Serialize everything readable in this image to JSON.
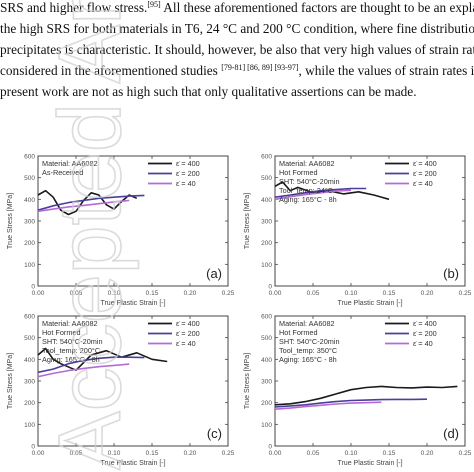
{
  "paragraph": {
    "lines": [
      {
        "parts": [
          {
            "t": "SRS and higher flow stress."
          },
          {
            "sup": "[95]"
          },
          {
            "t": " All these aforementioned factors are thought to be an explanation"
          }
        ]
      },
      {
        "parts": [
          {
            "t": "the high SRS for both materials in T6, 24 °C and 200 °C condition, where fine distribution"
          }
        ]
      },
      {
        "parts": [
          {
            "t": "precipitates is characteristic. It should, however, be also that very high values of strain rates w"
          }
        ]
      },
      {
        "parts": [
          {
            "t": "considered in the aforementioned studies "
          },
          {
            "sup": "[79-81] [86, 89] [93-97]"
          },
          {
            "t": ", while the values of strain rates in"
          }
        ]
      },
      {
        "parts": [
          {
            "t": "present work are not as high such that only qualitative assertions can be made."
          }
        ]
      }
    ]
  },
  "watermark": "Accepted Article",
  "axes": {
    "ylabel": "True Stress [MPa]",
    "xlabel": "True Plastic Strain [-]",
    "yticks": [
      "600",
      "500",
      "400",
      "300",
      "200",
      "100",
      "0"
    ],
    "xticks": [
      "0.00",
      "0.05",
      "0.10",
      "0.15",
      "0.20",
      "0.25"
    ],
    "xlim": [
      0,
      0.25
    ],
    "ylim": [
      0,
      600
    ]
  },
  "colors": {
    "s400": "#1a1a1a",
    "s200": "#4a3f9a",
    "s40": "#b56ad6",
    "frame": "#444444"
  },
  "legend": [
    "ε̇ = 400",
    "ε̇ = 200",
    "ε̇ = 40"
  ],
  "chart_data": [
    {
      "type": "line",
      "panel_label": "(a)",
      "annotation": [
        "Material: AA6082",
        "As-Received"
      ],
      "series": [
        {
          "name": "ε̇ = 400",
          "x": [
            0.0,
            0.01,
            0.02,
            0.03,
            0.04,
            0.05,
            0.06,
            0.07,
            0.08,
            0.09,
            0.1,
            0.11,
            0.12,
            0.13
          ],
          "y": [
            420,
            440,
            410,
            350,
            330,
            345,
            395,
            430,
            420,
            375,
            355,
            390,
            420,
            405
          ]
        },
        {
          "name": "ε̇ = 200",
          "x": [
            0.0,
            0.02,
            0.04,
            0.06,
            0.08,
            0.1,
            0.12,
            0.14
          ],
          "y": [
            350,
            370,
            385,
            395,
            405,
            410,
            415,
            418
          ]
        },
        {
          "name": "ε̇ = 40",
          "x": [
            0.0,
            0.02,
            0.04,
            0.06,
            0.08,
            0.1,
            0.12
          ],
          "y": [
            345,
            355,
            365,
            372,
            380,
            388,
            395
          ]
        }
      ]
    },
    {
      "type": "line",
      "panel_label": "(b)",
      "annotation": [
        "Material: AA6082",
        "Hot Formed",
        "SHT: 540°C-20min",
        "Tool_temp: 24°C",
        "Aging: 165°C - 8h"
      ],
      "series": [
        {
          "name": "ε̇ = 400",
          "x": [
            0.0,
            0.01,
            0.02,
            0.03,
            0.05,
            0.07,
            0.09,
            0.11,
            0.13,
            0.15
          ],
          "y": [
            460,
            480,
            440,
            455,
            430,
            440,
            425,
            435,
            420,
            400
          ]
        },
        {
          "name": "ε̇ = 200",
          "x": [
            0.0,
            0.02,
            0.04,
            0.06,
            0.08,
            0.1,
            0.12
          ],
          "y": [
            410,
            420,
            430,
            440,
            445,
            450,
            450
          ]
        },
        {
          "name": "ε̇ = 40",
          "x": [
            0.0,
            0.02,
            0.04,
            0.06,
            0.08,
            0.1
          ],
          "y": [
            400,
            412,
            422,
            430,
            438,
            442
          ]
        }
      ]
    },
    {
      "type": "line",
      "panel_label": "(c)",
      "annotation": [
        "Material: AA6082",
        "Hot Formed",
        "SHT: 540°C-20min",
        "Tool_temp: 200°C",
        "Aging: 165°C - 8h"
      ],
      "series": [
        {
          "name": "ε̇ = 400",
          "x": [
            0.0,
            0.01,
            0.02,
            0.03,
            0.05,
            0.07,
            0.09,
            0.11,
            0.13,
            0.15,
            0.17
          ],
          "y": [
            420,
            450,
            400,
            380,
            350,
            420,
            440,
            410,
            430,
            400,
            390
          ]
        },
        {
          "name": "ε̇ = 200",
          "x": [
            0.0,
            0.02,
            0.04,
            0.06,
            0.08,
            0.1,
            0.12,
            0.14
          ],
          "y": [
            340,
            355,
            380,
            395,
            405,
            410,
            410,
            408
          ]
        },
        {
          "name": "ε̇ = 40",
          "x": [
            0.0,
            0.02,
            0.04,
            0.06,
            0.08,
            0.1,
            0.12
          ],
          "y": [
            320,
            335,
            348,
            358,
            366,
            372,
            378
          ]
        }
      ]
    },
    {
      "type": "line",
      "panel_label": "(d)",
      "annotation": [
        "Material: AA6082",
        "Hot Formed",
        "SHT: 540°C-20min",
        "Tool_temp: 350°C",
        "Aging: 165°C - 8h"
      ],
      "series": [
        {
          "name": "ε̇ = 400",
          "x": [
            0.0,
            0.02,
            0.04,
            0.06,
            0.08,
            0.1,
            0.12,
            0.14,
            0.16,
            0.18,
            0.2,
            0.22,
            0.24
          ],
          "y": [
            190,
            195,
            205,
            220,
            240,
            260,
            270,
            275,
            270,
            268,
            272,
            270,
            275
          ]
        },
        {
          "name": "ε̇ = 200",
          "x": [
            0.0,
            0.02,
            0.04,
            0.06,
            0.08,
            0.1,
            0.12,
            0.14,
            0.16,
            0.18,
            0.2
          ],
          "y": [
            180,
            185,
            190,
            198,
            205,
            210,
            212,
            214,
            215,
            215,
            216
          ]
        },
        {
          "name": "ε̇ = 40",
          "x": [
            0.0,
            0.02,
            0.04,
            0.06,
            0.08,
            0.1,
            0.12,
            0.14
          ],
          "y": [
            170,
            175,
            182,
            188,
            194,
            198,
            200,
            202
          ]
        }
      ]
    }
  ]
}
